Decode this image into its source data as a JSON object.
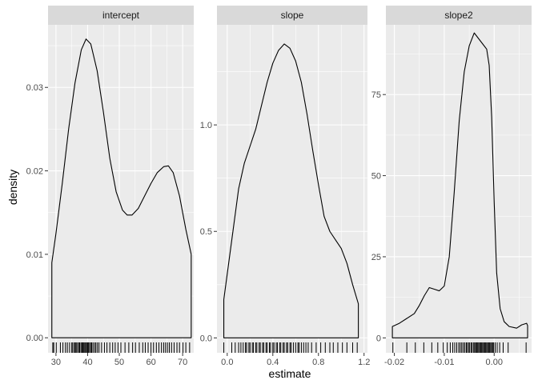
{
  "chart_data": {
    "type": "density",
    "xlabel": "estimate",
    "ylabel": "density",
    "colors": {
      "panel_bg": "#EBEBEB",
      "grid": "#FFFFFF",
      "strip_bg": "#D9D9D9",
      "line": "#000000",
      "fill": "#EBEBEB"
    },
    "facets": [
      {
        "name": "intercept",
        "xlim": [
          27.5,
          73.5
        ],
        "ylim": [
          -0.0018,
          0.0375
        ],
        "xticks": [
          30,
          40,
          50,
          60,
          70
        ],
        "xtick_labels": [
          "30",
          "40",
          "50",
          "60",
          "70"
        ],
        "yticks": [
          0.0,
          0.01,
          0.02,
          0.03
        ],
        "ytick_labels": [
          "0.00",
          "0.01",
          "0.02",
          "0.03"
        ],
        "density": [
          [
            28.7,
            0.0
          ],
          [
            28.7,
            0.009
          ],
          [
            30,
            0.0125
          ],
          [
            32,
            0.0185
          ],
          [
            34,
            0.025
          ],
          [
            36,
            0.0305
          ],
          [
            38,
            0.0345
          ],
          [
            39.5,
            0.0358
          ],
          [
            41,
            0.0352
          ],
          [
            43,
            0.032
          ],
          [
            45,
            0.027
          ],
          [
            47,
            0.0215
          ],
          [
            49,
            0.0175
          ],
          [
            51,
            0.0153
          ],
          [
            52.5,
            0.0147
          ],
          [
            54,
            0.0147
          ],
          [
            56,
            0.0155
          ],
          [
            58,
            0.017
          ],
          [
            60,
            0.0185
          ],
          [
            62,
            0.0198
          ],
          [
            64,
            0.0205
          ],
          [
            65.5,
            0.0206
          ],
          [
            67,
            0.0198
          ],
          [
            69,
            0.017
          ],
          [
            71,
            0.013
          ],
          [
            72.7,
            0.01
          ],
          [
            72.7,
            0.0
          ]
        ],
        "rug": [
          29.0,
          29.3,
          30.1,
          31.4,
          32.2,
          33.0,
          33.6,
          34.3,
          35.0,
          35.3,
          35.8,
          36.1,
          36.4,
          36.8,
          37.2,
          37.5,
          37.9,
          38.2,
          38.5,
          38.8,
          39.1,
          39.4,
          39.7,
          40.0,
          40.3,
          40.6,
          41.0,
          41.3,
          41.7,
          42.2,
          42.6,
          43.1,
          43.6,
          44.4,
          45.3,
          46.1,
          47.0,
          47.9,
          48.7,
          49.6,
          50.5,
          51.8,
          53.0,
          54.2,
          55.1,
          56.3,
          57.4,
          58.2,
          59.1,
          60.0,
          60.8,
          61.7,
          62.5,
          63.3,
          64.0,
          64.6,
          65.2,
          65.8,
          66.5,
          67.3,
          68.2,
          69.0,
          70.1,
          71.0,
          72.2
        ]
      },
      {
        "name": "slope",
        "xlim": [
          -0.09,
          1.23
        ],
        "ylim": [
          -0.07,
          1.47
        ],
        "xticks": [
          0.0,
          0.4,
          0.8,
          1.2
        ],
        "xtick_labels": [
          "0.0",
          "0.4",
          "0.8",
          "1.2"
        ],
        "yticks": [
          0.0,
          0.5,
          1.0
        ],
        "ytick_labels": [
          "0.0",
          "0.5",
          "1.0"
        ],
        "density": [
          [
            -0.03,
            0.0
          ],
          [
            -0.03,
            0.18
          ],
          [
            0.0,
            0.3
          ],
          [
            0.05,
            0.5
          ],
          [
            0.1,
            0.7
          ],
          [
            0.15,
            0.82
          ],
          [
            0.2,
            0.9
          ],
          [
            0.25,
            0.98
          ],
          [
            0.3,
            1.09
          ],
          [
            0.35,
            1.2
          ],
          [
            0.4,
            1.29
          ],
          [
            0.45,
            1.35
          ],
          [
            0.5,
            1.38
          ],
          [
            0.55,
            1.36
          ],
          [
            0.6,
            1.3
          ],
          [
            0.65,
            1.2
          ],
          [
            0.7,
            1.05
          ],
          [
            0.75,
            0.88
          ],
          [
            0.8,
            0.72
          ],
          [
            0.85,
            0.57
          ],
          [
            0.9,
            0.5
          ],
          [
            0.95,
            0.46
          ],
          [
            1.0,
            0.42
          ],
          [
            1.05,
            0.35
          ],
          [
            1.1,
            0.25
          ],
          [
            1.15,
            0.16
          ],
          [
            1.15,
            0.0
          ]
        ],
        "rug": [
          -0.03,
          0.04,
          0.07,
          0.1,
          0.12,
          0.14,
          0.16,
          0.17,
          0.19,
          0.2,
          0.22,
          0.23,
          0.25,
          0.26,
          0.28,
          0.29,
          0.31,
          0.32,
          0.34,
          0.35,
          0.37,
          0.38,
          0.4,
          0.41,
          0.43,
          0.44,
          0.46,
          0.47,
          0.49,
          0.5,
          0.52,
          0.53,
          0.55,
          0.56,
          0.58,
          0.6,
          0.62,
          0.63,
          0.65,
          0.67,
          0.69,
          0.71,
          0.74,
          0.78,
          0.82,
          0.86,
          0.9,
          0.93,
          0.97,
          1.01,
          1.05,
          1.1,
          1.14
        ]
      },
      {
        "name": "slope2",
        "xlim": [
          -0.0217,
          0.0075
        ],
        "ylim": [
          -4.6,
          96.5
        ],
        "xticks": [
          -0.02,
          -0.01,
          0.0
        ],
        "xtick_labels": [
          "-0.02",
          "-0.01",
          "0.00"
        ],
        "yticks": [
          0,
          25,
          50,
          75
        ],
        "ytick_labels": [
          "0",
          "25",
          "50",
          "75"
        ],
        "density": [
          [
            -0.0204,
            0.0
          ],
          [
            -0.0204,
            3.5
          ],
          [
            -0.019,
            4.5
          ],
          [
            -0.0175,
            6.0
          ],
          [
            -0.016,
            7.5
          ],
          [
            -0.015,
            10.0
          ],
          [
            -0.014,
            13.0
          ],
          [
            -0.013,
            15.5
          ],
          [
            -0.012,
            15.0
          ],
          [
            -0.011,
            14.5
          ],
          [
            -0.01,
            16.0
          ],
          [
            -0.009,
            25.0
          ],
          [
            -0.008,
            45.0
          ],
          [
            -0.007,
            67.0
          ],
          [
            -0.006,
            82.0
          ],
          [
            -0.005,
            90.0
          ],
          [
            -0.004,
            94.0
          ],
          [
            -0.003,
            92.0
          ],
          [
            -0.002,
            90.0
          ],
          [
            -0.0015,
            89.0
          ],
          [
            -0.001,
            84.0
          ],
          [
            -0.0005,
            68.0
          ],
          [
            0.0,
            42.0
          ],
          [
            0.0005,
            20.0
          ],
          [
            0.0012,
            9.0
          ],
          [
            0.002,
            5.0
          ],
          [
            0.003,
            3.5
          ],
          [
            0.0045,
            3.0
          ],
          [
            0.0055,
            4.0
          ],
          [
            0.0065,
            4.5
          ],
          [
            0.0067,
            3.8
          ],
          [
            0.0067,
            0.0
          ]
        ],
        "rug": [
          -0.0203,
          -0.0175,
          -0.0158,
          -0.0141,
          -0.0125,
          -0.0113,
          -0.0102,
          -0.0094,
          -0.0088,
          -0.0083,
          -0.0079,
          -0.0075,
          -0.0071,
          -0.0068,
          -0.0065,
          -0.0062,
          -0.0059,
          -0.0056,
          -0.0054,
          -0.0051,
          -0.0049,
          -0.0046,
          -0.0044,
          -0.0041,
          -0.0039,
          -0.0037,
          -0.0035,
          -0.0033,
          -0.0031,
          -0.0029,
          -0.0027,
          -0.0025,
          -0.0023,
          -0.0021,
          -0.0019,
          -0.0017,
          -0.0015,
          -0.0013,
          -0.0011,
          -0.0009,
          -0.0007,
          -0.0005,
          -0.0003,
          -0.0001,
          0.0002,
          0.0006,
          0.0011,
          0.0018,
          0.0028,
          0.0064
        ]
      }
    ]
  }
}
